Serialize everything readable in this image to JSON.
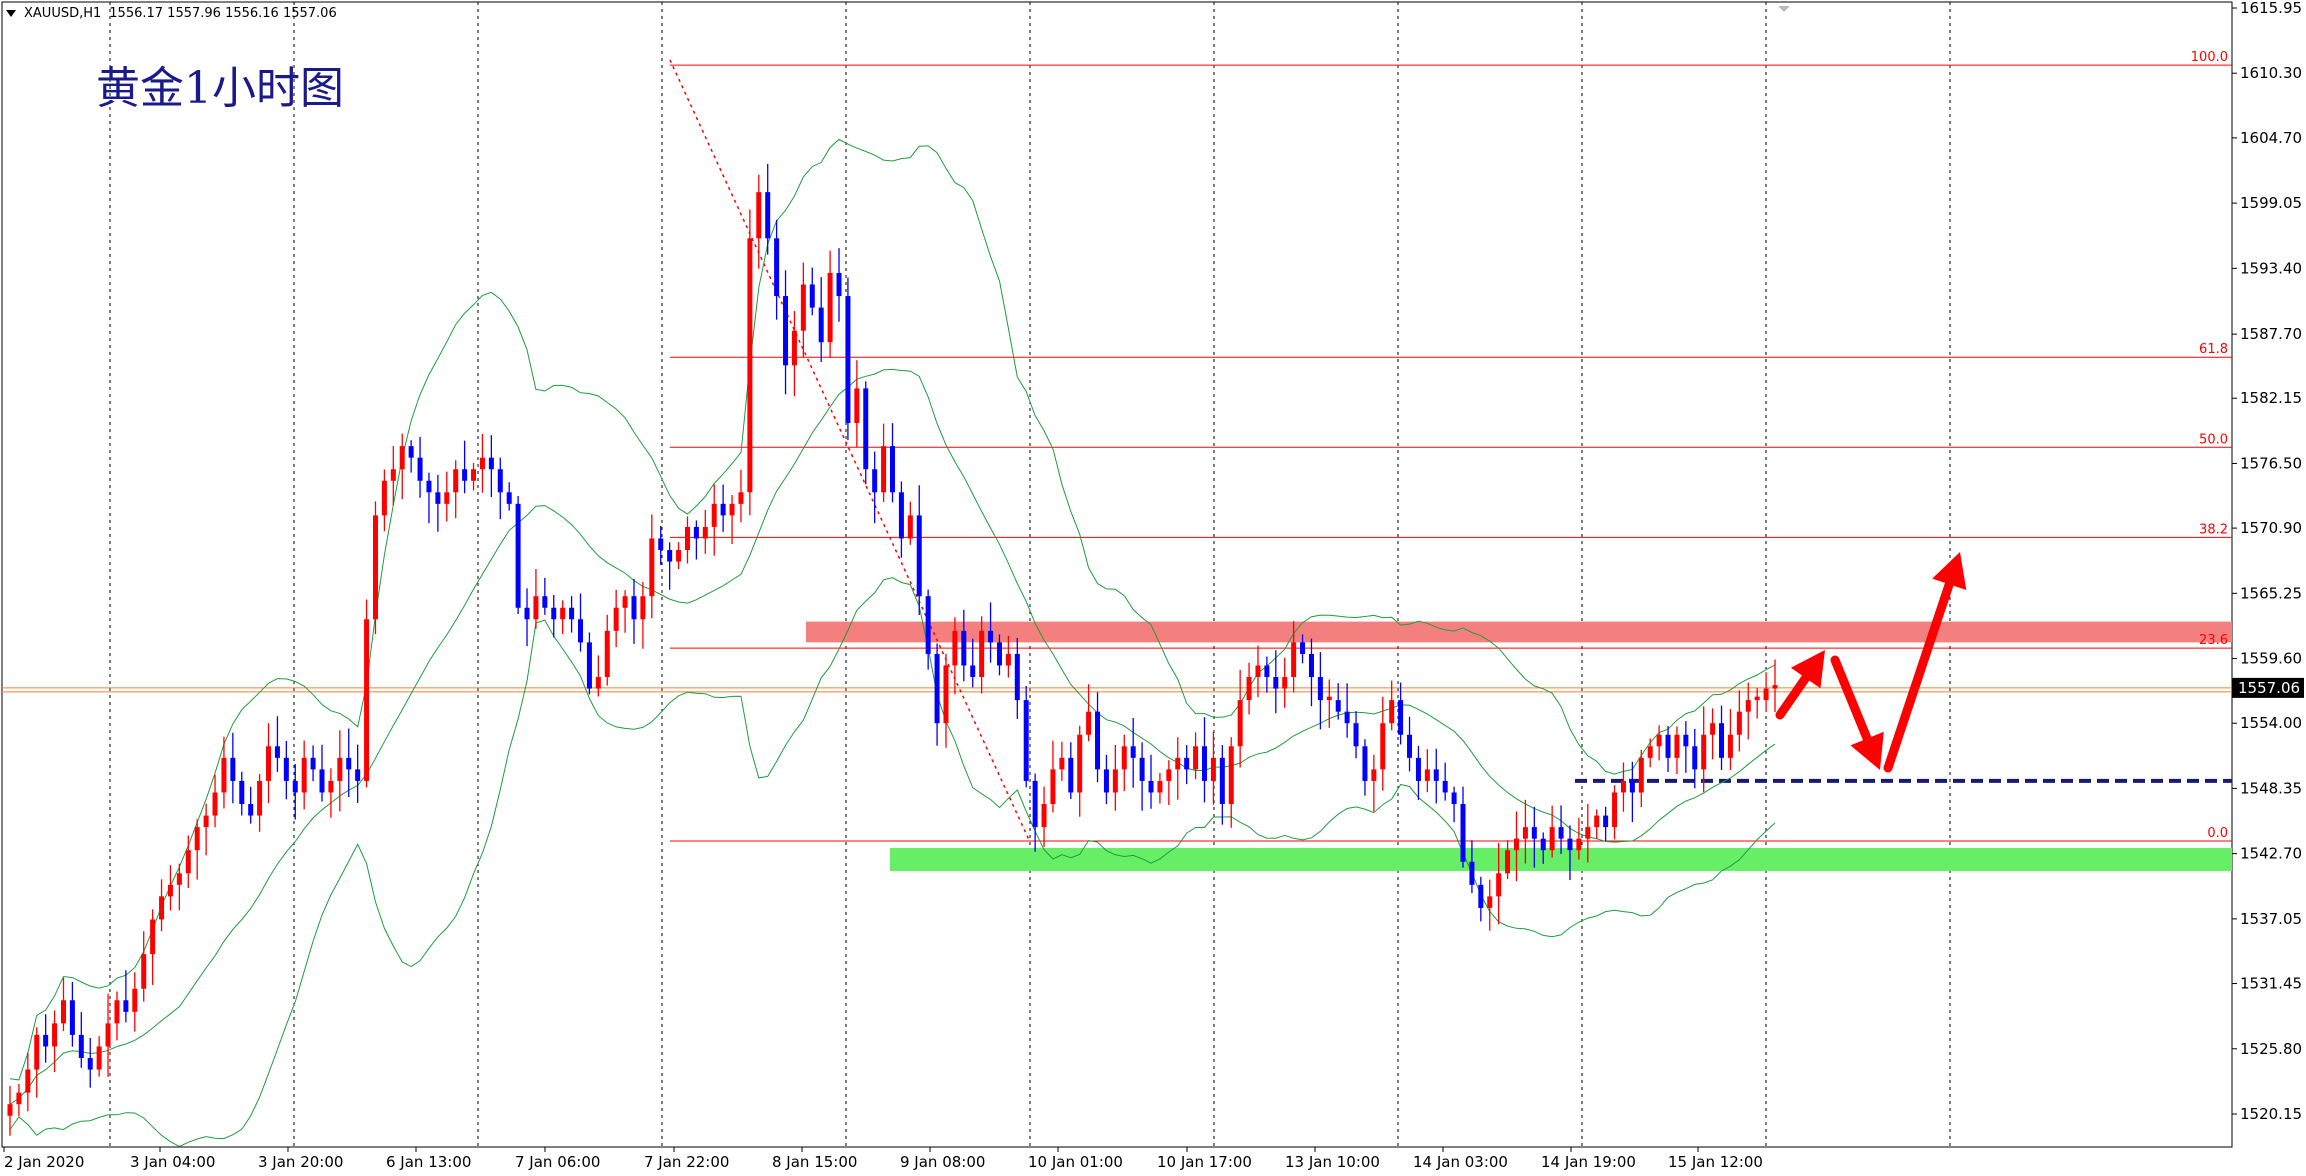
{
  "header": {
    "symbol": "XAUUSD,H1",
    "ohlc": "1556.17 1557.96 1556.16 1557.06"
  },
  "title_cn": "黄金1小时图",
  "colors": {
    "bull": "#ff0000",
    "bear": "#0000ff",
    "band": "#1e9e3a",
    "fib": "#ff0000",
    "resistance_zone": "#f47f7f",
    "support_zone": "#66ee66",
    "dashed_line": "#1a1a6e",
    "price_line": "#f08030"
  },
  "chart_data": {
    "type": "candlestick",
    "title": "黄金1小时图",
    "y_ticks": [
      "1615.95",
      "1610.30",
      "1604.70",
      "1599.05",
      "1593.40",
      "1587.70",
      "1582.15",
      "1576.50",
      "1570.90",
      "1565.25",
      "1559.60",
      "1554.00",
      "1548.35",
      "1542.70",
      "1537.05",
      "1531.45",
      "1525.80",
      "1520.15"
    ],
    "ylim": [
      1518.5,
      1617.0
    ],
    "x_ticks": [
      "2 Jan 2020",
      "3 Jan 04:00",
      "3 Jan 20:00",
      "6 Jan 13:00",
      "7 Jan 06:00",
      "7 Jan 22:00",
      "8 Jan 15:00",
      "9 Jan 08:00",
      "10 Jan 01:00",
      "10 Jan 17:00",
      "13 Jan 10:00",
      "14 Jan 03:00",
      "14 Jan 19:00",
      "15 Jan 12:00"
    ],
    "current_price": "1557.06",
    "fibonacci": [
      {
        "label": "100.0",
        "price": 1611.0
      },
      {
        "label": "61.8",
        "price": 1585.7
      },
      {
        "label": "50.0",
        "price": 1577.9
      },
      {
        "label": "38.2",
        "price": 1570.1
      },
      {
        "label": "23.6",
        "price": 1560.5
      },
      {
        "label": "0.0",
        "price": 1543.8
      }
    ],
    "resistance_zone": [
      1561.0,
      1562.8
    ],
    "support_zone": [
      1541.2,
      1543.2
    ],
    "dashed_level": 1549.0,
    "closes": [
      1521,
      1522,
      1524,
      1527,
      1526,
      1528,
      1530,
      1527,
      1525,
      1524,
      1526,
      1528,
      1530,
      1529,
      1531,
      1534,
      1537,
      1539,
      1540,
      1541,
      1543,
      1545,
      1546,
      1548,
      1551,
      1549,
      1547,
      1546,
      1549,
      1552,
      1551,
      1549,
      1548,
      1551,
      1550,
      1548,
      1549,
      1551,
      1550,
      1549,
      1563,
      1572,
      1575,
      1576,
      1578,
      1577,
      1575,
      1574,
      1573,
      1574,
      1576,
      1575,
      1576,
      1577,
      1576,
      1574,
      1573,
      1564,
      1563,
      1565,
      1564,
      1563,
      1564,
      1563,
      1561,
      1557,
      1558,
      1562,
      1564,
      1565,
      1563,
      1565,
      1570,
      1569,
      1568,
      1569,
      1571,
      1570,
      1571,
      1573,
      1572,
      1573,
      1574,
      1596,
      1600,
      1596,
      1591,
      1585,
      1588,
      1592,
      1590,
      1587,
      1593,
      1591,
      1580,
      1583,
      1576,
      1574,
      1578,
      1574,
      1570,
      1572,
      1565,
      1560,
      1554,
      1559,
      1562,
      1559,
      1558,
      1562,
      1561,
      1559,
      1560,
      1556,
      1549,
      1545,
      1547,
      1550,
      1551,
      1548,
      1553,
      1555,
      1550,
      1548,
      1550,
      1552,
      1551,
      1549,
      1548,
      1549,
      1550,
      1551,
      1550,
      1552,
      1549,
      1551,
      1547,
      1552,
      1556,
      1558,
      1559,
      1558,
      1557,
      1558,
      1561,
      1560,
      1558,
      1556,
      1556,
      1555,
      1554,
      1552,
      1549,
      1550,
      1554,
      1556,
      1553,
      1551,
      1549,
      1550,
      1549,
      1548,
      1547,
      1542,
      1540,
      1538,
      1539,
      1541,
      1543,
      1544,
      1545,
      1544,
      1543,
      1545,
      1544,
      1543,
      1544,
      1545,
      1546,
      1545,
      1548,
      1549,
      1548,
      1551,
      1552,
      1553,
      1551,
      1553,
      1552,
      1550,
      1553,
      1554,
      1551,
      1553,
      1555,
      1556,
      1556,
      1557,
      1557
    ]
  }
}
